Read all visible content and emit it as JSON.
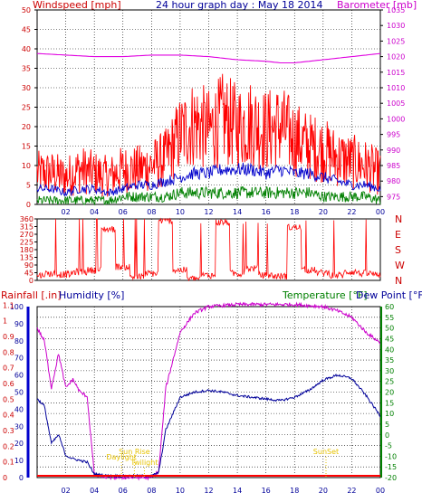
{
  "header": {
    "windspeed_label": "Windspeed [mph]",
    "title": "24 hour graph day : May 18 2014",
    "barometer_label": "Barometer [mb]"
  },
  "colors": {
    "wind": "#ff0000",
    "wind_avg": "#0000cc",
    "wind_low": "#008000",
    "barometer": "#e000e0",
    "direction": "#ff0000",
    "dir_axis": "#cc0000",
    "humidity": "#000099",
    "temperature": "#cc00cc",
    "temp_axis": "#008000",
    "rain": "#ff0000",
    "sun": "#e6c200",
    "grid": "#000000"
  },
  "chart_data": [
    {
      "type": "line",
      "name": "wind-and-barometer",
      "x_ticks": [
        "02",
        "04",
        "06",
        "08",
        "10",
        "12",
        "14",
        "16",
        "18",
        "20",
        "22",
        "00"
      ],
      "y_left_ticks": [
        0,
        5,
        10,
        15,
        20,
        25,
        30,
        35,
        40,
        45,
        50
      ],
      "y_left_range": [
        0,
        50
      ],
      "y_right_ticks": [
        975,
        980,
        985,
        990,
        995,
        1000,
        1005,
        1010,
        1015,
        1020,
        1025,
        1030,
        1035
      ],
      "y_right_range": [
        972.5,
        1035
      ],
      "series": [
        {
          "key": "gust",
          "values": [
            8,
            8,
            7,
            9,
            8,
            7,
            9,
            9,
            10,
            12,
            18,
            21,
            19,
            22,
            20,
            21,
            19,
            20,
            17,
            15,
            14,
            12,
            11,
            10,
            8
          ]
        },
        {
          "key": "avg",
          "values": [
            4,
            4,
            3,
            4,
            4,
            3,
            4,
            5,
            5,
            6,
            7,
            8,
            8,
            9,
            9,
            9,
            8,
            9,
            8,
            8,
            7,
            6,
            5,
            5,
            4
          ]
        },
        {
          "key": "low",
          "values": [
            1,
            1,
            1,
            1,
            1,
            1,
            2,
            2,
            2,
            2,
            3,
            3,
            3,
            3,
            3,
            3,
            3,
            3,
            3,
            3,
            2,
            2,
            2,
            2,
            1
          ]
        },
        {
          "key": "barometer",
          "x": [
            0,
            2,
            4,
            6,
            8,
            10,
            12,
            14,
            16,
            17,
            18,
            20,
            22,
            24
          ],
          "values": [
            1021,
            1020.5,
            1020,
            1020,
            1020.5,
            1020.5,
            1020,
            1019,
            1018.5,
            1018,
            1018,
            1019,
            1020,
            1021
          ]
        }
      ]
    },
    {
      "type": "scatter",
      "name": "wind-direction",
      "y_left_ticks": [
        0,
        45,
        90,
        135,
        180,
        225,
        270,
        315,
        360
      ],
      "y_right_ticks": [
        "N",
        "W",
        "S",
        "E",
        "N"
      ],
      "y_range": [
        0,
        360
      ],
      "values": [
        30,
        40,
        35,
        50,
        60,
        300,
        80,
        20,
        40,
        350,
        60,
        10,
        30,
        340,
        40,
        70,
        30,
        25,
        310,
        60,
        45,
        30,
        50,
        40,
        35
      ]
    },
    {
      "type": "line",
      "name": "rain-humidity-temperature",
      "rainfall_label": "Rainfall [.in]",
      "humidity_label": "Humidity [%]",
      "temperature_label": "Temperature [°F]",
      "dewpoint_label": "Dew Point [°F]",
      "y_rain_ticks": [
        "0",
        "0.1",
        "0.2",
        "0.3",
        "0.4",
        "0.5",
        "0.6",
        "0.7",
        "0.8",
        "0.9",
        "1",
        "1.1"
      ],
      "y_humidity_ticks": [
        0,
        10,
        20,
        30,
        40,
        50,
        60,
        70,
        80,
        90,
        100
      ],
      "y_temp_ticks": [
        -20,
        -15,
        -10,
        -5,
        0,
        5,
        10,
        15,
        20,
        25,
        30,
        35,
        40,
        45,
        50,
        55,
        60
      ],
      "temp_range": [
        -20,
        60
      ],
      "humidity_range": [
        0,
        100
      ],
      "series": [
        {
          "key": "temperature",
          "x": [
            0,
            0.5,
            1,
            1.5,
            2,
            2.5,
            3,
            3.5,
            4,
            5,
            6,
            7,
            8,
            8.5,
            9,
            10,
            11,
            12,
            14,
            16,
            18,
            20,
            21,
            22,
            23,
            24
          ],
          "values": [
            50,
            44,
            22,
            38,
            22,
            26,
            20,
            18,
            -19,
            -20,
            -20,
            -20,
            -20,
            -17,
            22,
            48,
            57,
            60,
            61,
            61,
            61,
            60,
            58,
            55,
            48,
            43
          ]
        },
        {
          "key": "humidity",
          "x": [
            0,
            0.5,
            1,
            1.5,
            2,
            2.5,
            3,
            3.5,
            4,
            5,
            6,
            7,
            8,
            8.5,
            9,
            10,
            11,
            12,
            13,
            14,
            15,
            16,
            17,
            18,
            19,
            20,
            21,
            22,
            23,
            24
          ],
          "values": [
            46,
            42,
            20,
            25,
            13,
            11,
            10,
            9,
            2,
            1,
            1,
            1,
            1,
            3,
            28,
            47,
            50,
            51,
            50,
            48,
            47,
            46,
            45,
            47,
            51,
            57,
            60,
            58,
            48,
            36
          ]
        },
        {
          "key": "rain",
          "values": [
            0,
            0,
            0,
            0,
            0,
            0,
            0,
            0,
            0,
            0,
            0,
            0,
            0,
            0,
            0,
            0,
            0,
            0,
            0,
            0,
            0,
            0,
            0,
            0,
            0
          ]
        }
      ],
      "sun_events": [
        {
          "label": "Sun Rise",
          "hour": 6.8
        },
        {
          "label": "Daylight",
          "hour": 5.9
        },
        {
          "label": "Twilight",
          "hour": 7.5
        },
        {
          "label": "SunSet",
          "hour": 20.2
        }
      ]
    }
  ]
}
